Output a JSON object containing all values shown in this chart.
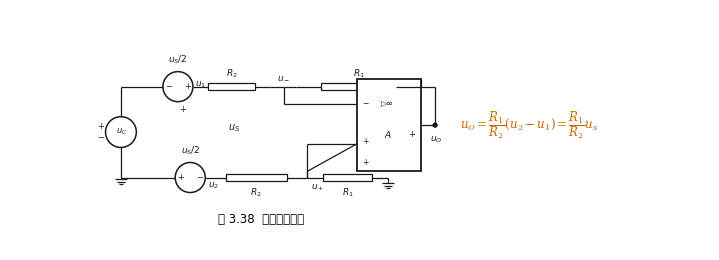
{
  "title": "图 3.38  差分放大电路",
  "bg_color": "#ffffff",
  "line_color": "#1a1a1a",
  "formula_color": "#cc6600",
  "title_color": "#000000",
  "figsize": [
    7.19,
    2.6
  ],
  "dpi": 100,
  "xlim": [
    0,
    7.19
  ],
  "ylim": [
    0,
    2.6
  ]
}
